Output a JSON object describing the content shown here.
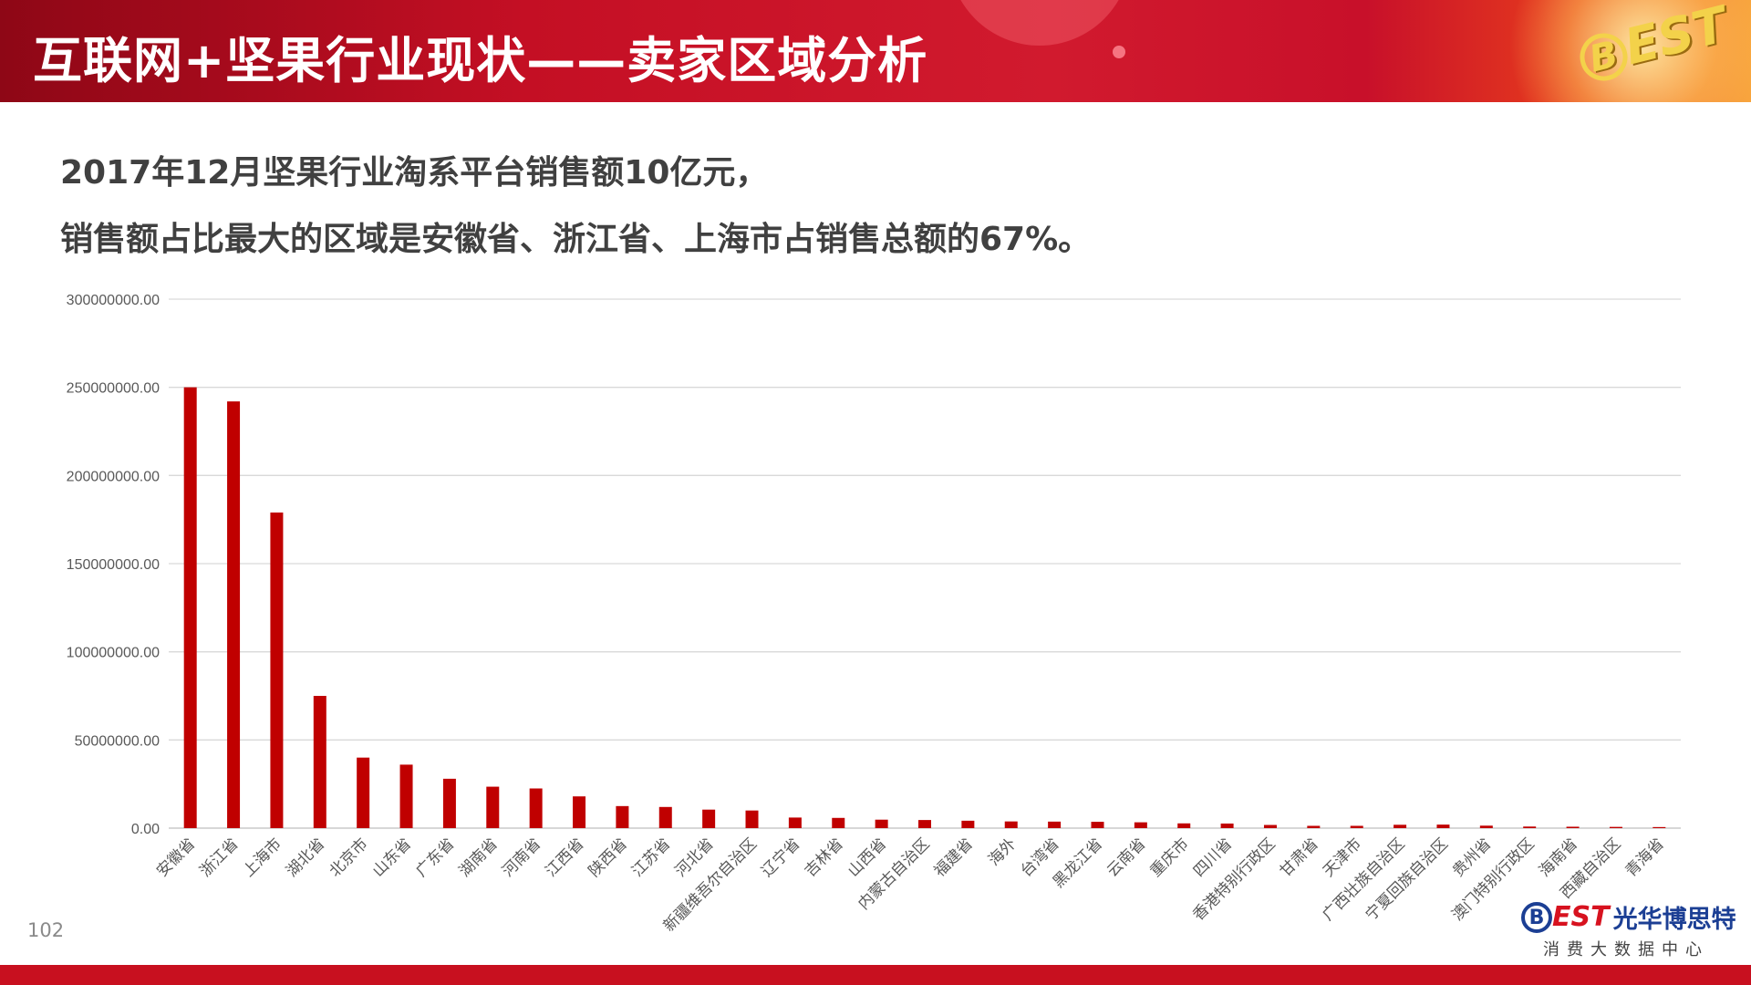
{
  "header": {
    "title": "互联网+坚果行业现状——卖家区域分析",
    "logo_text": "EST",
    "colors": {
      "primary": "#c40f24",
      "dark": "#8e0716",
      "accent": "#f7a23a"
    }
  },
  "summary": {
    "line1": "2017年12月坚果行业淘系平台销售额10亿元，",
    "line2": "销售额占比最大的区域是安徽省、浙江省、上海市占销售总额的67%。"
  },
  "chart_data": {
    "type": "bar",
    "title": "",
    "xlabel": "",
    "ylabel": "",
    "ylim": [
      0,
      300000000
    ],
    "yticks": [
      "0.00",
      "50000000.00",
      "100000000.00",
      "150000000.00",
      "200000000.00",
      "250000000.00",
      "300000000.00"
    ],
    "grid": true,
    "bar_color": "#c00000",
    "categories": [
      "安徽省",
      "浙江省",
      "上海市",
      "湖北省",
      "北京市",
      "山东省",
      "广东省",
      "湖南省",
      "河南省",
      "江西省",
      "陕西省",
      "江苏省",
      "河北省",
      "新疆维吾尔自治区",
      "辽宁省",
      "吉林省",
      "山西省",
      "内蒙古自治区",
      "福建省",
      "海外",
      "台湾省",
      "黑龙江省",
      "云南省",
      "重庆市",
      "四川省",
      "香港特别行政区",
      "甘肃省",
      "天津市",
      "广西壮族自治区",
      "宁夏回族自治区",
      "贵州省",
      "澳门特别行政区",
      "海南省",
      "西藏自治区",
      "青海省"
    ],
    "values": [
      250000000,
      242000000,
      179000000,
      75000000,
      40000000,
      36000000,
      28000000,
      23500000,
      22500000,
      18000000,
      12500000,
      12000000,
      10500000,
      10000000,
      6000000,
      5800000,
      4800000,
      4600000,
      4200000,
      3800000,
      3700000,
      3600000,
      3300000,
      2700000,
      2600000,
      1800000,
      1300000,
      1300000,
      1900000,
      2000000,
      1400000,
      900000,
      800000,
      700000,
      600000
    ]
  },
  "footer": {
    "page_number": "102",
    "logo_mark": "B",
    "logo_est": "EST",
    "logo_cn": "光华博思特",
    "logo_tagline": "消费大数据中心"
  }
}
